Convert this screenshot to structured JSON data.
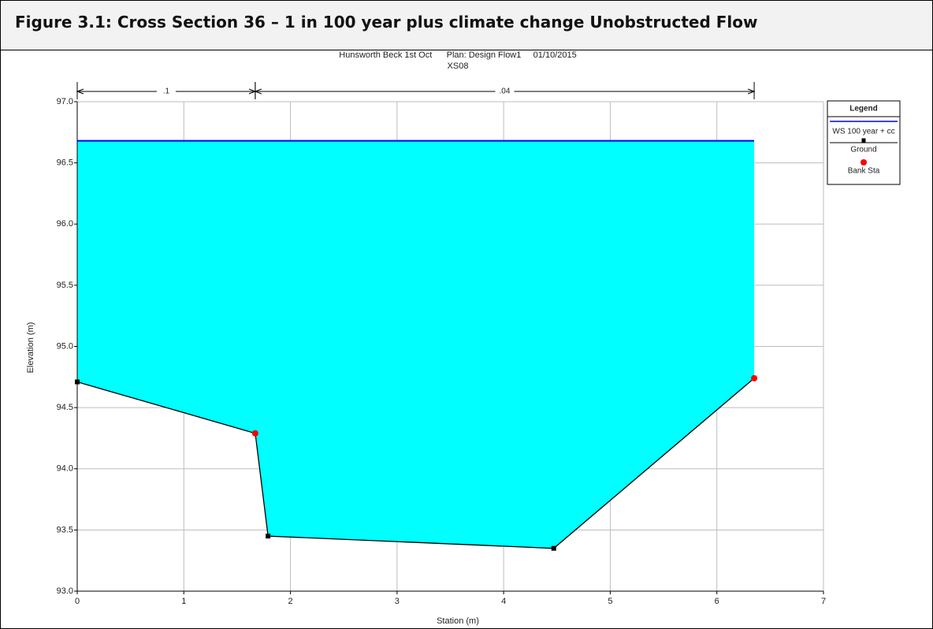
{
  "figure_title": "Figure 3.1: Cross Section 36 – 1 in 100 year plus climate change Unobstructed Flow",
  "chart_data": {
    "type": "line",
    "title": "Hunsworth Beck 1st Oct      Plan: Design Flow1     01/10/2015",
    "subtitle": "XS08",
    "x_label": "Station (m)",
    "y_label": "Elevation (m)",
    "xlim": [
      0,
      7
    ],
    "xticks": [
      0,
      1,
      2,
      3,
      4,
      5,
      6,
      7
    ],
    "ylim": [
      93,
      97
    ],
    "yticks": [
      {
        "value": 93,
        "label": "93.0"
      },
      93.5,
      {
        "value": 94,
        "label": "94.0"
      },
      94.5,
      {
        "value": 95,
        "label": "95.0"
      },
      95.5,
      {
        "value": 96,
        "label": "96.0"
      },
      96.5,
      {
        "value": 97,
        "label": "97.0"
      }
    ],
    "grid": true,
    "legend_title": "Legend",
    "legend": "right",
    "annotations": [
      {
        "label": ".1",
        "x": [
          0,
          1.67
        ]
      },
      {
        "label": ".04",
        "x": [
          1.67,
          6.35
        ]
      }
    ],
    "series": [
      {
        "name": "WS 100 year + cc",
        "color": "#0000ff",
        "fill": "#00ffff",
        "x": [
          0,
          6.35
        ],
        "values": [
          96.68,
          96.68
        ]
      },
      {
        "name": "Ground",
        "color": "#000000",
        "x": [
          0,
          1.67,
          1.79,
          4.47,
          6.35
        ],
        "values": [
          94.71,
          94.29,
          93.45,
          93.35,
          94.74
        ]
      },
      {
        "name": "Bank Sta",
        "color": "#ff0000",
        "x": [
          1.67,
          6.35
        ],
        "values": [
          94.29,
          94.74
        ]
      }
    ]
  }
}
